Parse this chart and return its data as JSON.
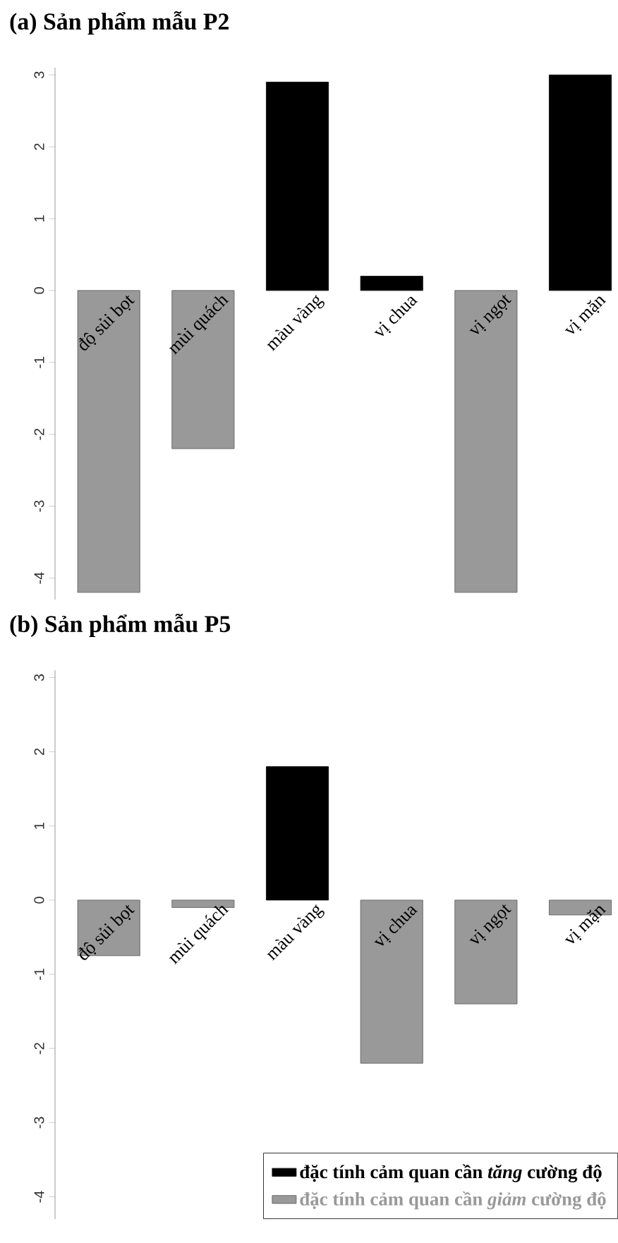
{
  "chart_data": [
    {
      "type": "bar",
      "title": "(a) Sản phẩm mẫu P2",
      "categories": [
        "độ sủi bọt",
        "mùi quách",
        "màu vàng",
        "vị chua",
        "vị ngọt",
        "vị mặn"
      ],
      "series": [
        {
          "color": "#000000",
          "values": [
            null,
            null,
            2.9,
            0.2,
            null,
            3.0
          ]
        },
        {
          "color": "#999999",
          "values": [
            -4.2,
            -2.2,
            null,
            null,
            -4.2,
            null
          ]
        }
      ],
      "ylim": [
        -4.3,
        3.1
      ],
      "yticks": [
        -4,
        -3,
        -2,
        -1,
        0,
        1,
        2,
        3
      ],
      "legend": false
    },
    {
      "type": "bar",
      "title": "(b) Sản phẩm mẫu P5",
      "categories": [
        "độ sủi bọt",
        "mùi quách",
        "màu vàng",
        "vị chua",
        "vị ngọt",
        "vị mặn"
      ],
      "series": [
        {
          "name": "đặc tính cảm quan cần *tăng* cường độ",
          "color": "#000000",
          "values": [
            null,
            null,
            1.8,
            null,
            null,
            null
          ]
        },
        {
          "name": "đặc tính cảm quan cần *giảm* cường độ",
          "color": "#999999",
          "values": [
            -0.75,
            -0.1,
            null,
            -2.2,
            -1.4,
            -0.2
          ]
        }
      ],
      "ylim": [
        -4.3,
        3.1
      ],
      "yticks": [
        -4,
        -3,
        -2,
        -1,
        0,
        1,
        2,
        3
      ],
      "legend": "bottom right"
    }
  ]
}
